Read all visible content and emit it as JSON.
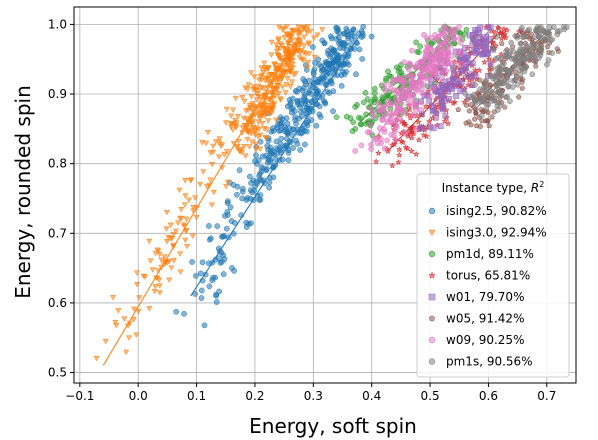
{
  "chart_data": {
    "type": "scatter",
    "xlabel": "Energy, soft spin",
    "ylabel": "Energy, rounded spin",
    "xlim": [
      -0.11,
      0.75
    ],
    "ylim": [
      0.485,
      1.025
    ],
    "xticks": [
      "−0.1",
      "0.0",
      "0.1",
      "0.2",
      "0.3",
      "0.4",
      "0.5",
      "0.6",
      "0.7"
    ],
    "yticks": [
      "0.5",
      "0.6",
      "0.7",
      "0.8",
      "0.9",
      "1.0"
    ],
    "grid": true,
    "legend": {
      "title": "Instance type, R²",
      "title_base": "Instance type, ",
      "title_symbol": "R",
      "title_sup": "2",
      "placement": "lower-right"
    },
    "series": [
      {
        "name": "ising2.5, 90.82%",
        "color": "#1f77b4",
        "marker": "circle",
        "fit": {
          "x": [
            0.09,
            0.38
          ],
          "y": [
            0.61,
            0.985
          ]
        },
        "clusters": [
          {
            "x": [
              0.1,
              0.21
            ],
            "y": [
              0.6,
              0.79
            ],
            "n": 90
          },
          {
            "x": [
              0.2,
              0.37
            ],
            "y": [
              0.78,
              0.99
            ],
            "n": 320
          }
        ]
      },
      {
        "name": "ising3.0, 92.94%",
        "color": "#ff7f0e",
        "marker": "triangle-down",
        "fit": {
          "x": [
            -0.06,
            0.28
          ],
          "y": [
            0.51,
            0.99
          ]
        },
        "clusters": [
          {
            "x": [
              -0.06,
              0.08
            ],
            "y": [
              0.51,
              0.7
            ],
            "n": 35
          },
          {
            "x": [
              0.02,
              0.18
            ],
            "y": [
              0.63,
              0.88
            ],
            "n": 90
          },
          {
            "x": [
              0.17,
              0.28
            ],
            "y": [
              0.82,
              0.99
            ],
            "n": 330
          }
        ]
      },
      {
        "name": "pm1d, 89.11%",
        "color": "#2ca02c",
        "marker": "circle",
        "fit": {
          "x": [
            0.38,
            0.55
          ],
          "y": [
            0.86,
            0.99
          ]
        },
        "clusters": [
          {
            "x": [
              0.38,
              0.55
            ],
            "y": [
              0.86,
              0.99
            ],
            "n": 160
          }
        ]
      },
      {
        "name": "torus, 65.81%",
        "color": "#d62728",
        "marker": "star",
        "fit": {
          "x": [
            0.43,
            0.62
          ],
          "y": [
            0.82,
            0.99
          ]
        },
        "clusters": [
          {
            "x": [
              0.43,
              0.63
            ],
            "y": [
              0.82,
              0.99
            ],
            "n": 180
          }
        ]
      },
      {
        "name": "w01, 79.70%",
        "color": "#9467bd",
        "marker": "square",
        "fit": {
          "x": [
            0.5,
            0.6
          ],
          "y": [
            0.88,
            0.99
          ]
        },
        "clusters": [
          {
            "x": [
              0.49,
              0.6
            ],
            "y": [
              0.86,
              0.99
            ],
            "n": 130
          }
        ]
      },
      {
        "name": "w05, 91.42%",
        "color": "#8c564b",
        "marker": "pentagon",
        "fit": {
          "x": [
            0.57,
            0.7
          ],
          "y": [
            0.88,
            0.99
          ]
        },
        "clusters": [
          {
            "x": [
              0.57,
              0.7
            ],
            "y": [
              0.87,
              0.99
            ],
            "n": 160
          }
        ]
      },
      {
        "name": "w09, 90.25%",
        "color": "#e377c2",
        "marker": "circle",
        "fit": {
          "x": [
            0.4,
            0.54
          ],
          "y": [
            0.83,
            0.99
          ]
        },
        "clusters": [
          {
            "x": [
              0.4,
              0.54
            ],
            "y": [
              0.83,
              0.99
            ],
            "n": 260
          }
        ]
      },
      {
        "name": "pm1s, 90.56%",
        "color": "#7f7f7f",
        "marker": "circle",
        "fit": {
          "x": [
            0.58,
            0.71
          ],
          "y": [
            0.88,
            0.995
          ]
        },
        "clusters": [
          {
            "x": [
              0.58,
              0.71
            ],
            "y": [
              0.88,
              0.995
            ],
            "n": 170
          }
        ]
      }
    ]
  }
}
